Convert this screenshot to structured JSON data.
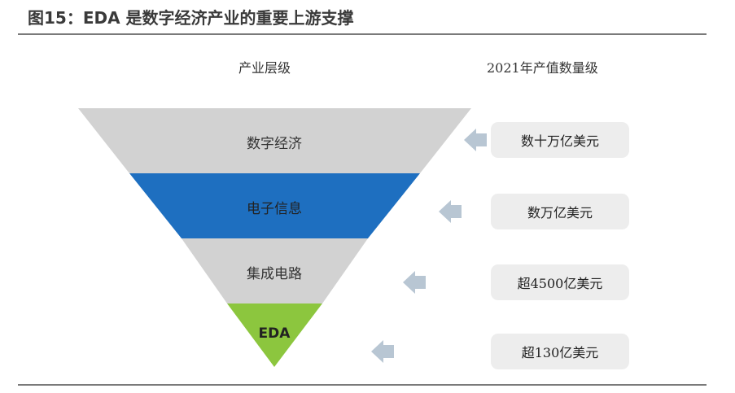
{
  "title": "图15：EDA 是数字经济产业的重要上游支撑",
  "headers": {
    "industry_level": "产业层级",
    "output_scale": "2021年产值数量级"
  },
  "layers": [
    {
      "label": "数字经济",
      "value": "数十万亿美元",
      "color": "#d2d2d2"
    },
    {
      "label": "电子信息",
      "value": "数万亿美元",
      "color": "#1e6fc0"
    },
    {
      "label": "集成电路",
      "value": "超4500亿美元",
      "color": "#d2d2d2"
    },
    {
      "label": "EDA",
      "value": "超130亿美元",
      "color": "#8cc63e"
    }
  ],
  "colors": {
    "arrow": "#b8c6d3",
    "rule": "#7a7a7a",
    "box": "#ededed"
  }
}
